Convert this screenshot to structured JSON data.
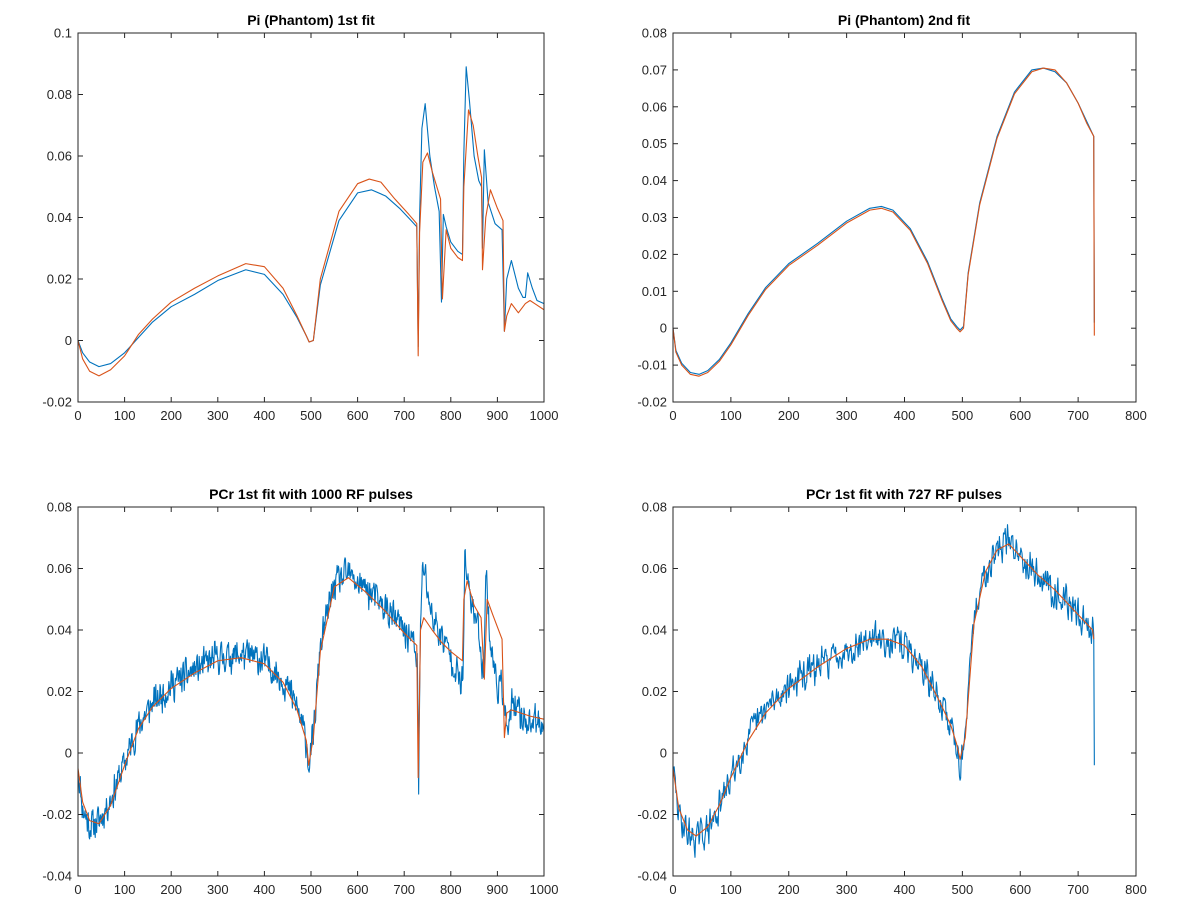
{
  "figure": {
    "background": "#ffffff"
  },
  "chart_data": [
    {
      "type": "line",
      "title": "Pi (Phantom) 1st fit",
      "xlim": [
        0,
        1000
      ],
      "ylim": [
        -0.02,
        0.1
      ],
      "x_ticks": [
        0,
        100,
        200,
        300,
        400,
        500,
        600,
        700,
        800,
        900,
        1000
      ],
      "y_ticks": [
        -0.02,
        0,
        0.02,
        0.04,
        0.06,
        0.08,
        0.1
      ],
      "x_tick_labels": [
        "0",
        "100",
        "200",
        "300",
        "400",
        "500",
        "600",
        "700",
        "800",
        "900",
        "1000"
      ],
      "y_tick_labels": [
        "-0.02",
        "0",
        "0.02",
        "0.04",
        "0.06",
        "0.08",
        "0.1"
      ],
      "grid": false,
      "series": [
        {
          "color": "#0072BD",
          "x": [
            0,
            10,
            25,
            45,
            70,
            100,
            130,
            160,
            200,
            250,
            300,
            360,
            400,
            440,
            470,
            490,
            496,
            505,
            520,
            560,
            600,
            630,
            660,
            690,
            715,
            727,
            730,
            733,
            738,
            745,
            755,
            765,
            775,
            780,
            784,
            790,
            800,
            815,
            825,
            828,
            833,
            840,
            850,
            860,
            866,
            868,
            872,
            880,
            895,
            910,
            915,
            920,
            930,
            945,
            955,
            960,
            965,
            975,
            985,
            1000
          ],
          "y": [
            0,
            -0.004,
            -0.007,
            -0.0085,
            -0.0075,
            -0.004,
            0.001,
            0.006,
            0.011,
            0.015,
            0.0195,
            0.023,
            0.0215,
            0.015,
            0.0075,
            0.0015,
            -0.0005,
            0,
            0.018,
            0.039,
            0.048,
            0.049,
            0.047,
            0.043,
            0.039,
            0.037,
            -0.002,
            0.04,
            0.069,
            0.077,
            0.06,
            0.05,
            0.042,
            0.0125,
            0.041,
            0.037,
            0.032,
            0.029,
            0.028,
            0.061,
            0.089,
            0.078,
            0.06,
            0.052,
            0.05,
            0.03,
            0.062,
            0.045,
            0.038,
            0.036,
            0.003,
            0.02,
            0.026,
            0.017,
            0.014,
            0.014,
            0.022,
            0.017,
            0.013,
            0.012
          ]
        },
        {
          "color": "#D95319",
          "x": [
            0,
            10,
            25,
            45,
            70,
            100,
            130,
            160,
            200,
            250,
            300,
            360,
            400,
            440,
            470,
            490,
            496,
            505,
            520,
            560,
            600,
            625,
            650,
            680,
            710,
            727,
            730,
            733,
            740,
            750,
            760,
            770,
            778,
            782,
            790,
            800,
            815,
            825,
            828,
            838,
            848,
            858,
            866,
            868,
            875,
            885,
            900,
            912,
            915,
            920,
            930,
            945,
            960,
            970,
            980,
            1000
          ],
          "y": [
            0,
            -0.006,
            -0.01,
            -0.0115,
            -0.0095,
            -0.005,
            0.002,
            0.007,
            0.0125,
            0.017,
            0.021,
            0.025,
            0.024,
            0.017,
            0.008,
            0.0015,
            -0.0005,
            0,
            0.02,
            0.042,
            0.051,
            0.0525,
            0.0515,
            0.046,
            0.041,
            0.038,
            -0.005,
            0.035,
            0.058,
            0.061,
            0.055,
            0.05,
            0.046,
            0.0135,
            0.036,
            0.03,
            0.027,
            0.026,
            0.05,
            0.075,
            0.07,
            0.06,
            0.053,
            0.023,
            0.04,
            0.049,
            0.043,
            0.039,
            0.003,
            0.008,
            0.012,
            0.009,
            0.012,
            0.013,
            0.012,
            0.01
          ]
        }
      ]
    },
    {
      "type": "line",
      "title": "Pi (Phantom) 2nd fit",
      "xlim": [
        0,
        800
      ],
      "ylim": [
        -0.02,
        0.08
      ],
      "x_ticks": [
        0,
        100,
        200,
        300,
        400,
        500,
        600,
        700,
        800
      ],
      "y_ticks": [
        -0.02,
        -0.01,
        0,
        0.01,
        0.02,
        0.03,
        0.04,
        0.05,
        0.06,
        0.07,
        0.08
      ],
      "x_tick_labels": [
        "0",
        "100",
        "200",
        "300",
        "400",
        "500",
        "600",
        "700",
        "800"
      ],
      "y_tick_labels": [
        "-0.02",
        "-0.01",
        "0",
        "0.01",
        "0.02",
        "0.03",
        "0.04",
        "0.05",
        "0.06",
        "0.07",
        "0.08"
      ],
      "grid": false,
      "series": [
        {
          "color": "#0072BD",
          "x": [
            0,
            5,
            15,
            30,
            45,
            60,
            80,
            100,
            130,
            160,
            200,
            250,
            300,
            340,
            360,
            380,
            410,
            440,
            465,
            480,
            490,
            496,
            502,
            510,
            530,
            560,
            590,
            620,
            640,
            660,
            680,
            700,
            715,
            727,
            728
          ],
          "y": [
            0,
            -0.006,
            -0.0095,
            -0.012,
            -0.0125,
            -0.0115,
            -0.0085,
            -0.004,
            0.004,
            0.011,
            0.0175,
            0.023,
            0.029,
            0.0325,
            0.033,
            0.032,
            0.027,
            0.018,
            0.008,
            0.0025,
            0.0005,
            -0.0005,
            0.0005,
            0.015,
            0.034,
            0.052,
            0.064,
            0.07,
            0.0705,
            0.0695,
            0.0665,
            0.061,
            0.056,
            0.052,
            0.0015
          ]
        },
        {
          "color": "#D95319",
          "x": [
            0,
            5,
            15,
            30,
            45,
            60,
            80,
            100,
            130,
            160,
            200,
            250,
            300,
            340,
            360,
            380,
            410,
            440,
            465,
            480,
            490,
            496,
            502,
            510,
            530,
            560,
            590,
            620,
            640,
            660,
            680,
            700,
            715,
            727,
            728
          ],
          "y": [
            0,
            -0.0065,
            -0.01,
            -0.0125,
            -0.013,
            -0.012,
            -0.009,
            -0.0045,
            0.0035,
            0.0105,
            0.017,
            0.0225,
            0.0285,
            0.032,
            0.0325,
            0.0315,
            0.0265,
            0.0175,
            0.0075,
            0.002,
            0,
            -0.001,
            0,
            0.0145,
            0.0335,
            0.0515,
            0.0635,
            0.0695,
            0.0705,
            0.07,
            0.0665,
            0.061,
            0.0555,
            0.052,
            -0.002
          ]
        }
      ]
    },
    {
      "type": "line",
      "title": "PCr 1st fit with 1000 RF pulses",
      "xlim": [
        0,
        1000
      ],
      "ylim": [
        -0.04,
        0.08
      ],
      "x_ticks": [
        0,
        100,
        200,
        300,
        400,
        500,
        600,
        700,
        800,
        900,
        1000
      ],
      "y_ticks": [
        -0.04,
        -0.02,
        0,
        0.02,
        0.04,
        0.06,
        0.08
      ],
      "x_tick_labels": [
        "0",
        "100",
        "200",
        "300",
        "400",
        "500",
        "600",
        "700",
        "800",
        "900",
        "1000"
      ],
      "y_tick_labels": [
        "-0.04",
        "-0.02",
        "0",
        "0.02",
        "0.04",
        "0.06",
        "0.08"
      ],
      "grid": false,
      "series": [
        {
          "color": "#0072BD",
          "noise": 0.0065,
          "seed": 11,
          "x": [
            0,
            10,
            25,
            45,
            70,
            100,
            130,
            160,
            200,
            250,
            300,
            350,
            400,
            440,
            470,
            490,
            495,
            505,
            520,
            550,
            580,
            620,
            660,
            700,
            720,
            728,
            731,
            735,
            740,
            760,
            780,
            800,
            820,
            826,
            830,
            840,
            860,
            870,
            875,
            885,
            900,
            915,
            920,
            930,
            950,
            970,
            1000
          ],
          "y": [
            -0.005,
            -0.018,
            -0.024,
            -0.022,
            -0.015,
            -0.003,
            0.009,
            0.016,
            0.022,
            0.027,
            0.031,
            0.032,
            0.03,
            0.024,
            0.015,
            0.004,
            -0.004,
            0.005,
            0.035,
            0.055,
            0.058,
            0.053,
            0.047,
            0.04,
            0.036,
            0.03,
            -0.009,
            0.04,
            0.062,
            0.044,
            0.038,
            0.032,
            0.023,
            0.023,
            0.062,
            0.052,
            0.04,
            0.025,
            0.06,
            0.035,
            0.022,
            0.02,
            0.005,
            0.015,
            0.012,
            0.01,
            0.01
          ]
        },
        {
          "color": "#D95319",
          "x": [
            0,
            10,
            25,
            45,
            70,
            100,
            130,
            160,
            200,
            250,
            300,
            350,
            400,
            440,
            470,
            490,
            495,
            505,
            520,
            550,
            580,
            620,
            660,
            700,
            727,
            730,
            735,
            742,
            760,
            780,
            800,
            825,
            828,
            835,
            850,
            865,
            872,
            878,
            890,
            910,
            915,
            920,
            930,
            950,
            970,
            1000
          ],
          "y": [
            -0.005,
            -0.016,
            -0.022,
            -0.023,
            -0.017,
            -0.004,
            0.008,
            0.015,
            0.021,
            0.026,
            0.03,
            0.031,
            0.029,
            0.023,
            0.014,
            0.004,
            -0.004,
            0.005,
            0.033,
            0.054,
            0.057,
            0.052,
            0.046,
            0.039,
            0.035,
            -0.008,
            0.04,
            0.044,
            0.04,
            0.036,
            0.033,
            0.03,
            0.05,
            0.056,
            0.048,
            0.044,
            0.024,
            0.05,
            0.045,
            0.037,
            0.005,
            0.013,
            0.014,
            0.013,
            0.012,
            0.011
          ]
        }
      ]
    },
    {
      "type": "line",
      "title": "PCr 1st fit with 727 RF pulses",
      "xlim": [
        0,
        800
      ],
      "ylim": [
        -0.04,
        0.08
      ],
      "x_ticks": [
        0,
        100,
        200,
        300,
        400,
        500,
        600,
        700,
        800
      ],
      "y_ticks": [
        -0.04,
        -0.02,
        0,
        0.02,
        0.04,
        0.06,
        0.08
      ],
      "x_tick_labels": [
        "0",
        "100",
        "200",
        "300",
        "400",
        "500",
        "600",
        "700",
        "800"
      ],
      "y_tick_labels": [
        "-0.04",
        "-0.02",
        "0",
        "0.02",
        "0.04",
        "0.06",
        "0.08"
      ],
      "grid": false,
      "series": [
        {
          "color": "#0072BD",
          "noise": 0.0065,
          "seed": 29,
          "x": [
            0,
            10,
            25,
            40,
            60,
            80,
            100,
            130,
            160,
            200,
            250,
            300,
            340,
            370,
            400,
            430,
            460,
            480,
            490,
            496,
            505,
            520,
            540,
            560,
            580,
            600,
            630,
            660,
            690,
            715,
            725,
            727,
            728
          ],
          "y": [
            -0.005,
            -0.02,
            -0.026,
            -0.028,
            -0.025,
            -0.018,
            -0.008,
            0.005,
            0.014,
            0.022,
            0.028,
            0.034,
            0.037,
            0.037,
            0.035,
            0.028,
            0.017,
            0.009,
            0.003,
            -0.004,
            0.005,
            0.043,
            0.06,
            0.066,
            0.069,
            0.065,
            0.058,
            0.053,
            0.047,
            0.042,
            0.04,
            0.035,
            -0.004
          ]
        },
        {
          "color": "#D95319",
          "x": [
            0,
            10,
            25,
            40,
            60,
            80,
            100,
            130,
            160,
            200,
            250,
            300,
            340,
            370,
            400,
            430,
            460,
            480,
            490,
            496,
            505,
            520,
            540,
            560,
            580,
            600,
            630,
            660,
            690,
            715,
            725,
            727
          ],
          "y": [
            -0.005,
            -0.018,
            -0.025,
            -0.027,
            -0.024,
            -0.017,
            -0.008,
            0.004,
            0.013,
            0.021,
            0.028,
            0.034,
            0.037,
            0.037,
            0.035,
            0.028,
            0.017,
            0.009,
            0.003,
            -0.002,
            0.005,
            0.042,
            0.059,
            0.066,
            0.068,
            0.064,
            0.058,
            0.053,
            0.047,
            0.042,
            0.04,
            0.037
          ]
        }
      ]
    }
  ]
}
